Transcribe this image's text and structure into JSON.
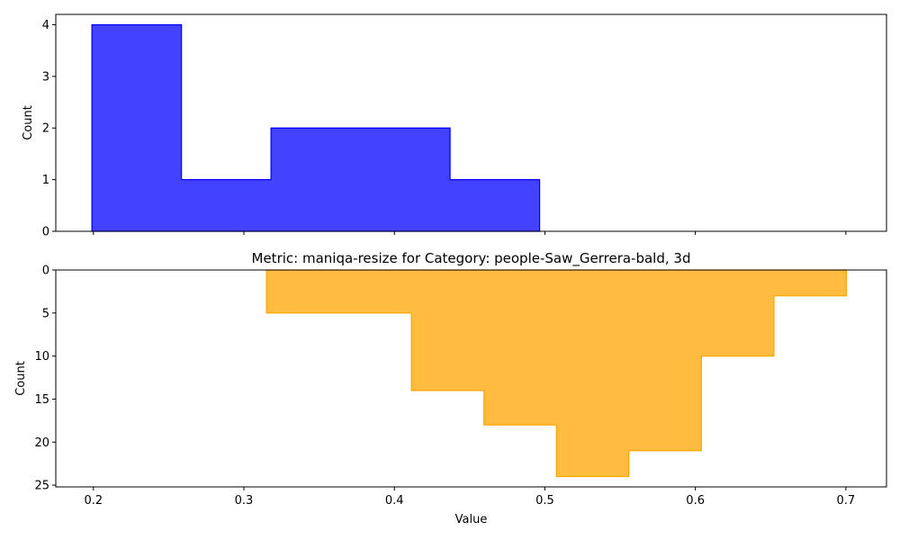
{
  "chart_data": [
    {
      "type": "histogram",
      "title": "",
      "xlabel": "",
      "ylabel": "Count",
      "xlim": [
        0.175,
        0.727
      ],
      "ylim": [
        0,
        4.2
      ],
      "y_inverted": false,
      "show_x_tick_labels": false,
      "xticks": [
        0.2,
        0.3,
        0.4,
        0.5,
        0.6,
        0.7
      ],
      "yticks": [
        0,
        1,
        2,
        3,
        4
      ],
      "grid": false,
      "series": [
        {
          "color": "#0000ff",
          "edges": [
            0.199,
            0.2585,
            0.318,
            0.3775,
            0.437,
            0.4965
          ],
          "counts": [
            4,
            1,
            2,
            2,
            1
          ]
        }
      ]
    },
    {
      "type": "histogram",
      "title": "Metric: maniqa-resize for Category: people-Saw_Gerrera-bald, 3d",
      "xlabel": "Value",
      "ylabel": "Count",
      "xlim": [
        0.175,
        0.727
      ],
      "ylim": [
        25.2,
        0
      ],
      "y_inverted": true,
      "show_x_tick_labels": true,
      "xticks": [
        0.2,
        0.3,
        0.4,
        0.5,
        0.6,
        0.7
      ],
      "xtick_labels": [
        "0.2",
        "0.3",
        "0.4",
        "0.5",
        "0.6",
        "0.7"
      ],
      "yticks": [
        0,
        5,
        10,
        15,
        20,
        25
      ],
      "grid": false,
      "series": [
        {
          "color": "#ffa500",
          "edges": [
            0.315,
            0.3632,
            0.4113,
            0.4595,
            0.5077,
            0.5558,
            0.604,
            0.6522,
            0.7003
          ],
          "counts": [
            5,
            5,
            14,
            18,
            24,
            21,
            10,
            3
          ]
        }
      ]
    }
  ]
}
